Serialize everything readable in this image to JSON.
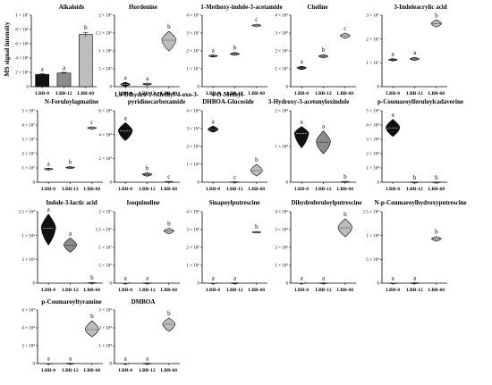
{
  "figure": {
    "ylabel": "MS signal intensity",
    "groups": [
      "LBB-0",
      "LBB-12",
      "LBB-60"
    ],
    "colors": {
      "c0": "#111111",
      "c1": "#8c8c8c",
      "c2": "#bdbdbd",
      "axis": "#000000"
    }
  },
  "chart_data": [
    {
      "id": "alkaloids",
      "type": "bar",
      "title": [
        "Alkaloids"
      ],
      "ylim": [
        0,
        10000000
      ],
      "yticks": [
        "0",
        "2 × 10⁶",
        "4 × 10⁶",
        "6 × 10⁶",
        "8 × 10⁶",
        "1 × 10⁷"
      ],
      "categories": [
        "LBB-0",
        "LBB-12",
        "LBB-60"
      ],
      "values": [
        1700000,
        1900000,
        7300000
      ],
      "errors": [
        100000,
        100000,
        300000
      ],
      "letters": [
        "a",
        "a",
        "b"
      ]
    },
    {
      "id": "hordenine",
      "type": "violin",
      "title": [
        "Hordenine"
      ],
      "ylim": [
        0,
        2000000
      ],
      "yticks": [
        "0",
        "5 × 10⁵",
        "1 × 10⁶",
        "1.5 × 10⁶",
        "2 × 10⁶"
      ],
      "categories": [
        "LBB-0",
        "LBB-12",
        "LBB-60"
      ],
      "distributions": [
        [
          10000,
          60000,
          120000
        ],
        [
          40000,
          70000,
          100000
        ],
        [
          1000000,
          1300000,
          1550000
        ]
      ],
      "letters": [
        "a",
        "a",
        "b"
      ]
    },
    {
      "id": "methoxy",
      "type": "violin",
      "title": [
        "1-Methoxy-indole-3-acetamide"
      ],
      "ylim": [
        0,
        40000000
      ],
      "yticks": [
        "0",
        "1 × 10⁷",
        "2 × 10⁷",
        "3 × 10⁷",
        "4 × 10⁷"
      ],
      "categories": [
        "LBB-0",
        "LBB-12",
        "LBB-60"
      ],
      "distributions": [
        [
          16500000,
          17200000,
          17800000
        ],
        [
          17500000,
          18200000,
          19200000
        ],
        [
          33500000,
          34300000,
          35000000
        ]
      ],
      "letters": [
        "a",
        "b",
        "c"
      ]
    },
    {
      "id": "choline",
      "type": "violin",
      "title": [
        "Choline"
      ],
      "ylim": [
        0,
        4000000
      ],
      "yticks": [
        "0",
        "1 × 10⁶",
        "2 × 10⁶",
        "3 × 10⁶",
        "4 × 10⁶"
      ],
      "categories": [
        "LBB-0",
        "LBB-12",
        "LBB-60"
      ],
      "distributions": [
        [
          950000,
          1050000,
          1150000
        ],
        [
          1600000,
          1700000,
          1800000
        ],
        [
          2700000,
          2850000,
          3000000
        ]
      ],
      "letters": [
        "a",
        "b",
        "c"
      ]
    },
    {
      "id": "indoleacrylic",
      "type": "violin",
      "title": [
        "3-Indoleacrylic acid"
      ],
      "ylim": [
        0,
        30000000
      ],
      "yticks": [
        "0",
        "1 × 10⁷",
        "2 × 10⁷",
        "3 × 10⁷"
      ],
      "categories": [
        "LBB-0",
        "LBB-12",
        "LBB-60"
      ],
      "distributions": [
        [
          10800000,
          11300000,
          11800000
        ],
        [
          11000000,
          11600000,
          12300000
        ],
        [
          25000000,
          26500000,
          28000000
        ]
      ],
      "letters": [
        "a",
        "a",
        "b"
      ]
    },
    {
      "id": "feruloylagmatine",
      "type": "violin",
      "title": [
        "N-Feruloylagmatine"
      ],
      "ylim": [
        0,
        50000000
      ],
      "yticks": [
        "0",
        "1 × 10⁷",
        "2 × 10⁷",
        "3 × 10⁷",
        "4 × 10⁷",
        "5 × 10⁷"
      ],
      "categories": [
        "LBB-0",
        "LBB-12",
        "LBB-60"
      ],
      "distributions": [
        [
          8500000,
          9200000,
          9800000
        ],
        [
          9500000,
          10200000,
          11000000
        ],
        [
          37000000,
          38000000,
          38800000
        ]
      ],
      "letters": [
        "a",
        "b",
        "c"
      ]
    },
    {
      "id": "dihydro",
      "type": "violin",
      "title": [
        "1,4-Dihydro-1-Mfethyl-4-oxo-3-",
        "pyridinecarboxamide"
      ],
      "ylim": [
        0,
        60000
      ],
      "yticks": [
        "0",
        "2 × 10⁴",
        "4 × 10⁴",
        "6 × 10⁴"
      ],
      "categories": [
        "LBB-0",
        "LBB-12",
        "LBB-60"
      ],
      "distributions": [
        [
          35000,
          43000,
          50000
        ],
        [
          5000,
          6500,
          8000
        ],
        [
          0,
          300,
          800
        ]
      ],
      "letters": [
        "a",
        "b",
        "c"
      ]
    },
    {
      "id": "dhboa",
      "type": "violin",
      "title": [
        "4-O-Methyl-",
        "DHBOA-Glucoside"
      ],
      "ylim": [
        0,
        40000
      ],
      "yticks": [
        "0",
        "1 × 10⁴",
        "2 × 10⁴",
        "3 × 10⁴",
        "4 × 10⁴"
      ],
      "categories": [
        "LBB-0",
        "LBB-12",
        "LBB-60"
      ],
      "distributions": [
        [
          28000,
          29500,
          31500
        ],
        [
          0,
          100,
          300
        ],
        [
          3500,
          6500,
          10000
        ]
      ],
      "letters": [
        "a",
        "c",
        "b"
      ]
    },
    {
      "id": "hydroxyacetonyl",
      "type": "violin",
      "title": [
        "3-Hydroxy-3-acetonyloxindole"
      ],
      "ylim": [
        0,
        25000
      ],
      "yticks": [
        "0",
        "1 × 10⁴",
        "2 × 10⁴"
      ],
      "categories": [
        "LBB-0",
        "LBB-12",
        "LBB-60"
      ],
      "distributions": [
        [
          12000,
          17000,
          19500
        ],
        [
          10000,
          14000,
          18000
        ],
        [
          0,
          100,
          300
        ]
      ],
      "letters": [
        "a",
        "a",
        "b"
      ]
    },
    {
      "id": "coumaroylferuloylcadaverine",
      "type": "violin",
      "title": [
        "p-Coumaroylferuloylcadaverine"
      ],
      "ylim": [
        0,
        50000
      ],
      "yticks": [
        "0",
        "1 × 10⁴",
        "2 × 10⁴",
        "3 × 10⁴",
        "4 × 10⁴",
        "5 × 10⁴"
      ],
      "categories": [
        "LBB-0",
        "LBB-12",
        "LBB-60"
      ],
      "distributions": [
        [
          32000,
          38000,
          44000
        ],
        [
          0,
          50,
          150
        ],
        [
          0,
          50,
          150
        ]
      ],
      "letters": [
        "a",
        "b",
        "b"
      ]
    },
    {
      "id": "lactic",
      "type": "violin",
      "title": [
        "Indole-3-lactic acid"
      ],
      "ylim": [
        0,
        15000
      ],
      "yticks": [
        "0",
        "5 × 10³",
        "1 × 10⁴",
        "1.5 × 10⁴"
      ],
      "categories": [
        "LBB-0",
        "LBB-12",
        "LBB-60"
      ],
      "distributions": [
        [
          8000,
          11500,
          14500
        ],
        [
          6500,
          8000,
          9500
        ],
        [
          0,
          50,
          150
        ]
      ],
      "letters": [
        "a",
        "a",
        "b"
      ]
    },
    {
      "id": "isoquinoline",
      "type": "violin",
      "title": [
        "Isoquinoline"
      ],
      "ylim": [
        0,
        20000000
      ],
      "yticks": [
        "0",
        "5 × 10⁶",
        "1 × 10⁷",
        "1.5 × 10⁷",
        "2 × 10⁷"
      ],
      "categories": [
        "LBB-0",
        "LBB-12",
        "LBB-60"
      ],
      "distributions": [
        [
          0,
          30000,
          80000
        ],
        [
          0,
          30000,
          80000
        ],
        [
          13800000,
          14600000,
          15400000
        ]
      ],
      "letters": [
        "a",
        "a",
        "b"
      ]
    },
    {
      "id": "sinapoyl",
      "type": "violin",
      "title": [
        "Sinapoylputrescine"
      ],
      "ylim": [
        0,
        4000000
      ],
      "yticks": [
        "0",
        "1 × 10⁶",
        "2 × 10⁶",
        "3 × 10⁶",
        "4 × 10⁶"
      ],
      "categories": [
        "LBB-0",
        "LBB-12",
        "LBB-60"
      ],
      "distributions": [
        [
          0,
          5000,
          15000
        ],
        [
          0,
          5000,
          15000
        ],
        [
          2800000,
          2850000,
          2900000
        ]
      ],
      "letters": [
        "a",
        "a",
        "b"
      ]
    },
    {
      "id": "dihydroferuloyl",
      "type": "violin",
      "title": [
        "Dihydroferuloylputrescine"
      ],
      "ylim": [
        0,
        400000
      ],
      "yticks": [
        "0",
        "1 × 10⁵",
        "2 × 10⁵",
        "3 × 10⁵",
        "4 × 10⁵"
      ],
      "categories": [
        "LBB-0",
        "LBB-12",
        "LBB-60"
      ],
      "distributions": [
        [
          0,
          500,
          1500
        ],
        [
          0,
          500,
          1500
        ],
        [
          260000,
          310000,
          360000
        ]
      ],
      "letters": [
        "a",
        "a",
        "b"
      ]
    },
    {
      "id": "coumaroylhydroxy",
      "type": "violin",
      "title": [
        "N-p-Coumaroylhydroxyputrescine"
      ],
      "ylim": [
        0,
        150000
      ],
      "yticks": [
        "0",
        "5 × 10⁴",
        "1 × 10⁵",
        "1.5 × 10⁵"
      ],
      "categories": [
        "LBB-0",
        "LBB-12",
        "LBB-60"
      ],
      "distributions": [
        [
          0,
          300,
          800
        ],
        [
          0,
          300,
          800
        ],
        [
          88000,
          93000,
          98000
        ]
      ],
      "letters": [
        "a",
        "a",
        "b"
      ]
    },
    {
      "id": "coumaroyltyramine",
      "type": "violin",
      "title": [
        "p-Coumaroyltyramine"
      ],
      "ylim": [
        0,
        60000
      ],
      "yticks": [
        "0",
        "2 × 10⁴",
        "4 × 10⁴",
        "6 × 10⁴"
      ],
      "categories": [
        "LBB-0",
        "LBB-12",
        "LBB-60"
      ],
      "distributions": [
        [
          0,
          100,
          300
        ],
        [
          0,
          100,
          300
        ],
        [
          30000,
          38000,
          48000
        ]
      ],
      "letters": [
        "a",
        "a",
        "b"
      ]
    },
    {
      "id": "dmboa",
      "type": "violin",
      "title": [
        "DMBOA"
      ],
      "ylim": [
        0,
        30000
      ],
      "yticks": [
        "0",
        "1 × 10⁴",
        "2 × 10⁴",
        "3 × 10⁴"
      ],
      "categories": [
        "LBB-0",
        "LBB-12",
        "LBB-60"
      ],
      "distributions": [
        [
          0,
          50,
          150
        ],
        [
          0,
          50,
          150
        ],
        [
          18000,
          22000,
          25500
        ]
      ],
      "letters": [
        "a",
        "a",
        "b"
      ]
    }
  ]
}
